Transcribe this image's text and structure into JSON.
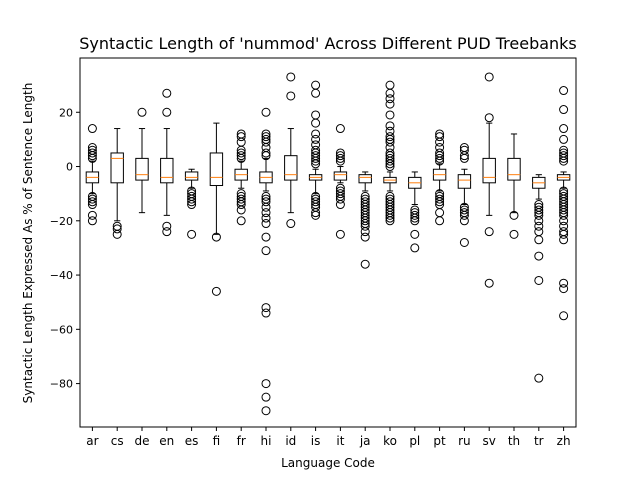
{
  "chart_data": {
    "type": "boxplot",
    "title": "Syntactic Length of 'nummod' Across Different PUD Treebanks",
    "xlabel": "Language Code",
    "ylabel": "Syntactic Length Expressed As % of Sentence Length",
    "ylim": [
      -96,
      40
    ],
    "yticks": [
      20,
      0,
      -20,
      -40,
      -60,
      -80
    ],
    "grid": false,
    "median_color": "#ff7f0e",
    "box_color": "#000000",
    "categories": [
      "ar",
      "cs",
      "de",
      "en",
      "es",
      "fi",
      "fr",
      "hi",
      "id",
      "is",
      "it",
      "ja",
      "ko",
      "pl",
      "pt",
      "ru",
      "sv",
      "th",
      "tr",
      "zh"
    ],
    "boxes": [
      {
        "label": "ar",
        "whislo": -10,
        "q1": -6,
        "med": -4,
        "q3": -2,
        "whishi": 2,
        "fliers": [
          14,
          7,
          6,
          5,
          4,
          3,
          -11,
          -12,
          -13,
          -14,
          -18,
          -20
        ]
      },
      {
        "label": "cs",
        "whislo": -20,
        "q1": -6,
        "med": 3,
        "q3": 5,
        "whishi": 14,
        "fliers": [
          -22,
          -23,
          -25
        ]
      },
      {
        "label": "de",
        "whislo": -17,
        "q1": -5,
        "med": -3,
        "q3": 3,
        "whishi": 14,
        "fliers": [
          20
        ]
      },
      {
        "label": "en",
        "whislo": -18,
        "q1": -6,
        "med": -4,
        "q3": 3,
        "whishi": 14,
        "fliers": [
          27,
          20,
          -22,
          -24
        ]
      },
      {
        "label": "es",
        "whislo": -8,
        "q1": -5,
        "med": -4,
        "q3": -2,
        "whishi": -1,
        "fliers": [
          -9,
          -10,
          -11,
          -12,
          -13,
          -14,
          -25
        ]
      },
      {
        "label": "fi",
        "whislo": -25,
        "q1": -7,
        "med": -4,
        "q3": 5,
        "whishi": 16,
        "fliers": [
          -26,
          -46
        ]
      },
      {
        "label": "fr",
        "whislo": -8,
        "q1": -5,
        "med": -3,
        "q3": -1,
        "whishi": 2,
        "fliers": [
          12,
          11,
          9,
          6,
          5,
          4,
          3,
          -10,
          -11,
          -12,
          -13,
          -14,
          -16,
          -20
        ]
      },
      {
        "label": "hi",
        "whislo": -9,
        "q1": -6,
        "med": -4,
        "q3": -2,
        "whishi": 3,
        "fliers": [
          20,
          12,
          11,
          10,
          9,
          7,
          5,
          4,
          -11,
          -12,
          -13,
          -15,
          -17,
          -19,
          -21,
          -26,
          -31,
          -52,
          -54,
          -80,
          -85,
          -90
        ]
      },
      {
        "label": "id",
        "whislo": -17,
        "q1": -5,
        "med": -3,
        "q3": 4,
        "whishi": 14,
        "fliers": [
          33,
          26,
          -21
        ]
      },
      {
        "label": "is",
        "whislo": -10,
        "q1": -5,
        "med": -4,
        "q3": -3,
        "whishi": -1,
        "fliers": [
          30,
          27,
          19,
          16,
          12,
          10,
          8,
          6,
          5,
          4,
          3,
          2,
          1,
          -11,
          -12,
          -13,
          -14,
          -15,
          -17,
          -18
        ]
      },
      {
        "label": "it",
        "whislo": -6,
        "q1": -5,
        "med": -3,
        "q3": -2,
        "whishi": 0,
        "fliers": [
          14,
          5,
          4,
          3,
          2,
          -8,
          -9,
          -10,
          -11,
          -12,
          -14,
          -25
        ]
      },
      {
        "label": "ja",
        "whislo": -9,
        "q1": -6,
        "med": -4,
        "q3": -3,
        "whishi": -2,
        "fliers": [
          -11,
          -12,
          -13,
          -14,
          -15,
          -16,
          -17,
          -18,
          -19,
          -20,
          -21,
          -22,
          -24,
          -26,
          -36
        ]
      },
      {
        "label": "ko",
        "whislo": -9,
        "q1": -6,
        "med": -5,
        "q3": -4,
        "whishi": -2,
        "fliers": [
          30,
          27,
          25,
          23,
          19,
          15,
          13,
          11,
          10,
          9,
          7,
          5,
          4,
          3,
          2,
          1,
          0,
          -11,
          -12,
          -13,
          -14,
          -15,
          -16,
          -17,
          -18,
          -19,
          -20
        ]
      },
      {
        "label": "pl",
        "whislo": -14,
        "q1": -8,
        "med": -6,
        "q3": -4,
        "whishi": -2,
        "fliers": [
          -16,
          -17,
          -18,
          -19,
          -20,
          -25,
          -30
        ]
      },
      {
        "label": "pt",
        "whislo": -9,
        "q1": -5,
        "med": -3,
        "q3": -1,
        "whishi": 1,
        "fliers": [
          12,
          11,
          9,
          7,
          5,
          4,
          3,
          2,
          -10,
          -11,
          -12,
          -13,
          -14,
          -17,
          -20
        ]
      },
      {
        "label": "ru",
        "whislo": -14,
        "q1": -8,
        "med": -5,
        "q3": -3,
        "whishi": -1,
        "fliers": [
          7,
          6,
          4,
          3,
          -15,
          -16,
          -17,
          -18,
          -20,
          -28
        ]
      },
      {
        "label": "sv",
        "whislo": -18,
        "q1": -6,
        "med": -4,
        "q3": 3,
        "whishi": 16,
        "fliers": [
          33,
          18,
          -24,
          -43
        ]
      },
      {
        "label": "th",
        "whislo": -17,
        "q1": -5,
        "med": -3,
        "q3": 3,
        "whishi": 12,
        "fliers": [
          -18,
          -25
        ]
      },
      {
        "label": "tr",
        "whislo": -12,
        "q1": -8,
        "med": -6,
        "q3": -4,
        "whishi": -3,
        "fliers": [
          -14,
          -15,
          -16,
          -17,
          -18,
          -20,
          -22,
          -24,
          -27,
          -33,
          -42,
          -78
        ]
      },
      {
        "label": "zh",
        "whislo": -8,
        "q1": -5,
        "med": -4,
        "q3": -3,
        "whishi": -2,
        "fliers": [
          28,
          21,
          14,
          10,
          6,
          5,
          4,
          3,
          2,
          -9,
          -10,
          -11,
          -12,
          -13,
          -14,
          -15,
          -16,
          -17,
          -18,
          -20,
          -22,
          -24,
          -25,
          -27,
          -43,
          -45,
          -55
        ]
      }
    ]
  }
}
